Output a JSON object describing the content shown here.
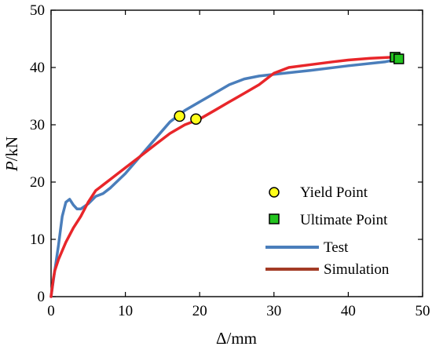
{
  "chart_data": {
    "type": "line",
    "xlabel": "Δ/mm",
    "ylabel": {
      "symbol": "P",
      "unit": "/kN"
    },
    "xlim": [
      0,
      50
    ],
    "ylim": [
      0,
      50
    ],
    "x_ticks": [
      "0",
      "10",
      "20",
      "30",
      "40",
      "50"
    ],
    "y_ticks": [
      "0",
      "10",
      "20",
      "30",
      "40",
      "50"
    ],
    "grid": false,
    "legend_position": "right",
    "legend": [
      {
        "label": "Yield Point",
        "marker": "circle"
      },
      {
        "label": "Ultimate Point",
        "marker": "square"
      },
      {
        "label": "Test",
        "line": true
      },
      {
        "label": "Simulation",
        "line": true
      }
    ],
    "series": [
      {
        "name": "Test",
        "color": "#4a7ebb",
        "x": [
          0,
          0.5,
          1.0,
          1.5,
          2.0,
          2.5,
          3.0,
          3.5,
          4.0,
          5.0,
          6.0,
          7.0,
          8.0,
          10.0,
          12.0,
          14.0,
          16.0,
          18.0,
          20.0,
          22.0,
          24.0,
          26.0,
          28.0,
          30.0,
          35.0,
          40.0,
          45.0,
          47.0
        ],
        "y": [
          0,
          4.5,
          9.0,
          14.0,
          16.5,
          17.0,
          16.0,
          15.3,
          15.3,
          16.2,
          17.5,
          18.0,
          19.0,
          21.5,
          24.5,
          27.5,
          30.5,
          32.5,
          34.0,
          35.5,
          37.0,
          38.0,
          38.5,
          38.8,
          39.5,
          40.3,
          41.0,
          41.5
        ]
      },
      {
        "name": "Simulation",
        "color": "#e8262a",
        "x": [
          0,
          0.3,
          0.5,
          1.0,
          2.0,
          3.0,
          4.0,
          5.0,
          6.0,
          7.0,
          8.0,
          10.0,
          12.0,
          14.0,
          16.0,
          18.0,
          20.0,
          22.0,
          24.0,
          26.0,
          28.0,
          30.0,
          32.0,
          35.0,
          38.0,
          40.0,
          43.0,
          46.0,
          47.0
        ],
        "y": [
          0,
          3.0,
          4.5,
          6.5,
          9.5,
          12.0,
          14.0,
          16.5,
          18.5,
          19.5,
          20.5,
          22.5,
          24.5,
          26.5,
          28.5,
          30.0,
          31.0,
          32.5,
          34.0,
          35.5,
          37.0,
          39.0,
          40.0,
          40.5,
          41.0,
          41.3,
          41.6,
          41.8,
          41.8
        ]
      }
    ],
    "yield_points": [
      {
        "x": 17.3,
        "y": 31.5
      },
      {
        "x": 19.5,
        "y": 31.0
      }
    ],
    "ultimate_points": [
      {
        "x": 46.3,
        "y": 41.8
      },
      {
        "x": 46.8,
        "y": 41.5
      }
    ],
    "colors": {
      "yield_marker": "#ffff1a",
      "ultimate_marker": "#23c41f",
      "legend_simulation_line": "#a33b25"
    }
  }
}
